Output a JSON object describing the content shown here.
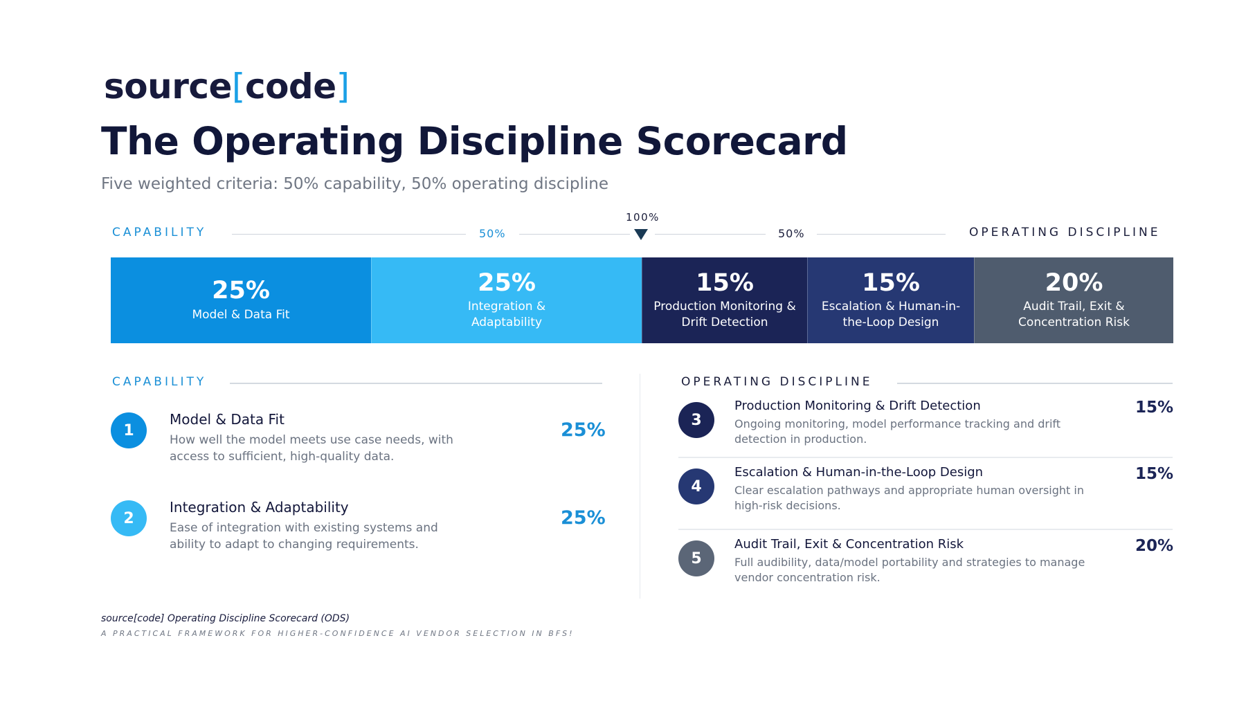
{
  "logo": {
    "text_a": "source",
    "bracket_open": "[",
    "text_b": "code",
    "bracket_close": "]"
  },
  "title": "The Operating Discipline Scorecard",
  "subtitle": "Five weighted criteria: 50% capability, 50% operating discipline",
  "scale": {
    "capability_label": "CAPABILITY",
    "capability_pct": "50%",
    "total": "100%",
    "ops_pct": "50%",
    "ops_label": "OPERATING DISCIPLINE"
  },
  "chart_data": {
    "type": "bar",
    "orientation": "horizontal-stacked",
    "categories": [
      "Model & Data Fit",
      "Integration & Adaptability",
      "Production Monitoring & Drift Detection",
      "Escalation & Human-in-the-Loop Design",
      "Audit Trail, Exit & Concentration Risk"
    ],
    "values": [
      25,
      25,
      15,
      15,
      20
    ],
    "segments": [
      {
        "pct": "25%",
        "label": "Model & Data Fit",
        "value": 25,
        "color": "#0b8fe0"
      },
      {
        "pct": "25%",
        "label": "Integration & Adaptability",
        "value": 25,
        "color": "#36baf5"
      },
      {
        "pct": "15%",
        "label": "Production Monitoring & Drift Detection",
        "value": 15,
        "color": "#1b2456"
      },
      {
        "pct": "15%",
        "label": "Escalation & Human-in-the-Loop Design",
        "value": 15,
        "color": "#263873"
      },
      {
        "pct": "20%",
        "label": "Audit Trail, Exit & Concentration Risk",
        "value": 20,
        "color": "#4f5c6e"
      }
    ]
  },
  "capability": {
    "header": "CAPABILITY",
    "items": [
      {
        "num": "1",
        "title": "Model & Data Fit",
        "desc": "How well the model meets use case needs, with access to sufficient, high-quality data.",
        "pct": "25%",
        "color": "#0b8fe0"
      },
      {
        "num": "2",
        "title": "Integration & Adaptability",
        "desc": "Ease of integration with existing systems and ability to adapt to changing requirements.",
        "pct": "25%",
        "color": "#36baf5"
      }
    ]
  },
  "operating": {
    "header": "OPERATING DISCIPLINE",
    "items": [
      {
        "num": "3",
        "title": "Production Monitoring & Drift Detection",
        "desc": "Ongoing monitoring, model performance tracking and drift detection in production.",
        "pct": "15%",
        "color": "#1b2456"
      },
      {
        "num": "4",
        "title": "Escalation & Human-in-the-Loop Design",
        "desc": "Clear escalation pathways and appropriate human oversight in high-risk decisions.",
        "pct": "15%",
        "color": "#263873"
      },
      {
        "num": "5",
        "title": "Audit Trail, Exit & Concentration Risk",
        "desc": "Full audibility, data/model portability and strategies to manage vendor concentration risk.",
        "pct": "20%",
        "color": "#5b6677"
      }
    ]
  },
  "footer": {
    "line1": "source[code] Operating Discipline Scorecard (ODS)",
    "line2": "A PRACTICAL FRAMEWORK FOR HIGHER-CONFIDENCE AI VENDOR SELECTION IN BFS!"
  }
}
